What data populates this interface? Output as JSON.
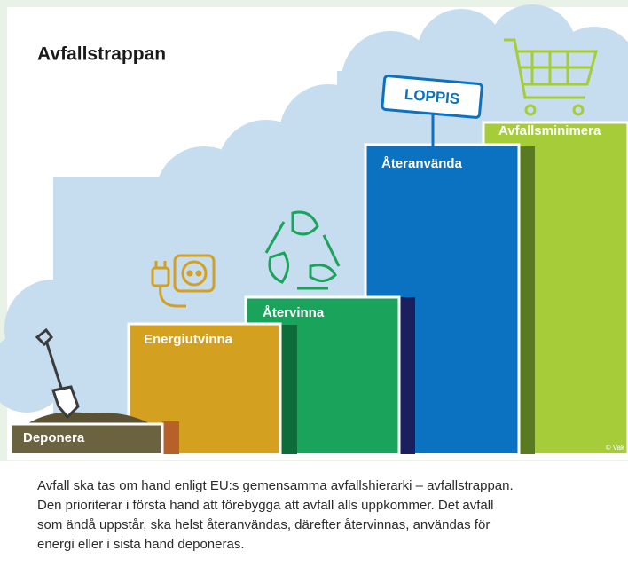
{
  "header": {
    "title": "Avfallstrappan"
  },
  "steps": [
    {
      "label": "Deponera"
    },
    {
      "label": "Energiutvinna"
    },
    {
      "label": "Återvinna"
    },
    {
      "label": "Återanvända"
    },
    {
      "label": "Avfallsminimera"
    }
  ],
  "sign": "LOPPIS",
  "credit": "© Vak",
  "caption": [
    "Avfall ska tas om hand enligt EU:s gemensamma avfallshierarki – avfallstrappan.",
    "Den prioriterar i första hand att förebygga att avfall alls uppkommer. Det avfall",
    "som ändå uppstår, ska helst återanvändas, därefter återvinnas, användas för",
    "energi eller i sista hand deponeras."
  ]
}
